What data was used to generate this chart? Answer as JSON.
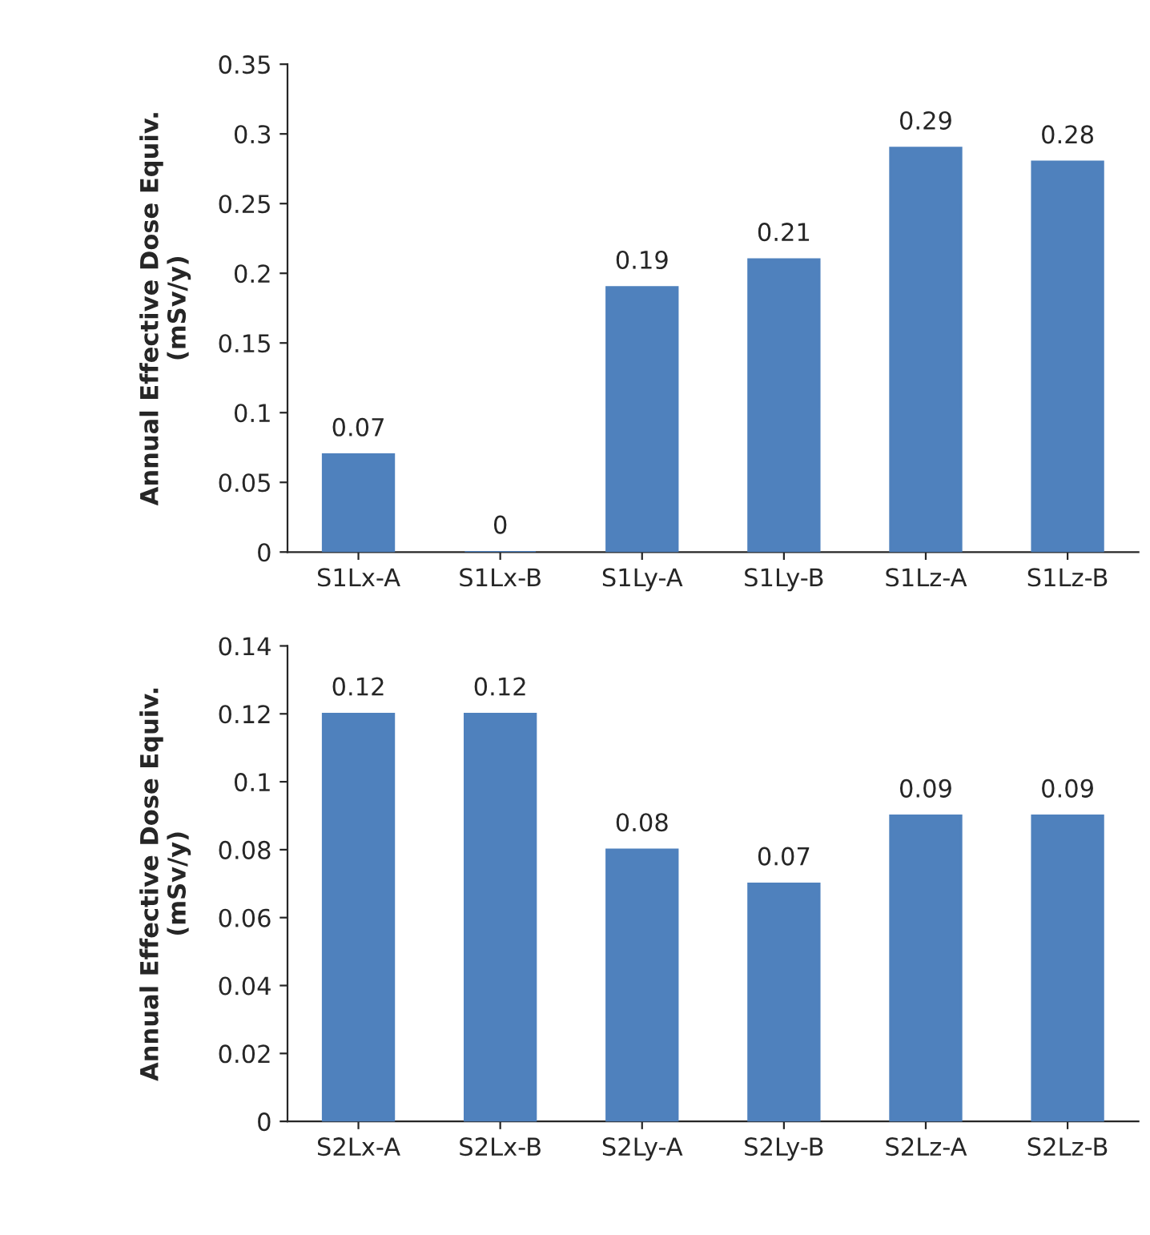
{
  "chart_data": [
    {
      "type": "bar",
      "ylabel": "Annual Effective Dose Equiv.\n(mSv/y)",
      "categories": [
        "S1Lx-A",
        "S1Lx-B",
        "S1Ly-A",
        "S1Ly-B",
        "S1Lz-A",
        "S1Lz-B"
      ],
      "series": [
        {
          "color": "#4f81bd",
          "values": [
            0.07,
            0,
            0.19,
            0.21,
            0.29,
            0.28
          ]
        }
      ],
      "ylim": [
        0,
        0.35
      ],
      "yticks": [
        0,
        0.05,
        0.1,
        0.15,
        0.2,
        0.25,
        0.3,
        0.35
      ],
      "data_labels": true,
      "grid": false,
      "legend": false
    },
    {
      "type": "bar",
      "ylabel": "Annual Effective Dose Equiv.\n(mSv/y)",
      "categories": [
        "S2Lx-A",
        "S2Lx-B",
        "S2Ly-A",
        "S2Ly-B",
        "S2Lz-A",
        "S2Lz-B"
      ],
      "series": [
        {
          "color": "#4f81bd",
          "values": [
            0.12,
            0.12,
            0.08,
            0.07,
            0.09,
            0.09
          ]
        }
      ],
      "ylim": [
        0,
        0.14
      ],
      "yticks": [
        0,
        0.02,
        0.04,
        0.06,
        0.08,
        0.1,
        0.12,
        0.14
      ],
      "data_labels": true,
      "grid": false,
      "legend": false
    }
  ]
}
